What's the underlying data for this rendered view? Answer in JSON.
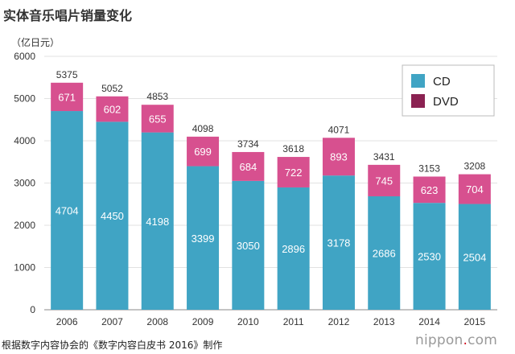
{
  "title": "实体音乐唱片销量变化",
  "unit": "（亿日元）",
  "source": "根据数字内容协会的《数字内容白皮书 2016》制作",
  "brand": {
    "prefix": "nippon",
    "dot": ".",
    "suffix": "com"
  },
  "colors": {
    "CD": "#40a4c4",
    "DVD": "#d7508f",
    "DVD_legend": "#8b2252"
  },
  "chart_data": {
    "type": "bar",
    "stacked": true,
    "categories": [
      "2006",
      "2007",
      "2008",
      "2009",
      "2010",
      "2011",
      "2012",
      "2013",
      "2014",
      "2015"
    ],
    "series": [
      {
        "name": "CD",
        "values": [
          4704,
          4450,
          4198,
          3399,
          3050,
          2896,
          3178,
          2686,
          2530,
          2504
        ]
      },
      {
        "name": "DVD",
        "values": [
          671,
          602,
          655,
          699,
          684,
          722,
          893,
          745,
          623,
          704
        ]
      }
    ],
    "totals": [
      5375,
      5052,
      4853,
      4098,
      3734,
      3618,
      4071,
      3431,
      3153,
      3208
    ],
    "yticks": [
      "0",
      "1000",
      "2000",
      "3000",
      "4000",
      "5000",
      "6000"
    ],
    "ylim": [
      0,
      6000
    ],
    "grid": true,
    "legend": "top-right"
  }
}
